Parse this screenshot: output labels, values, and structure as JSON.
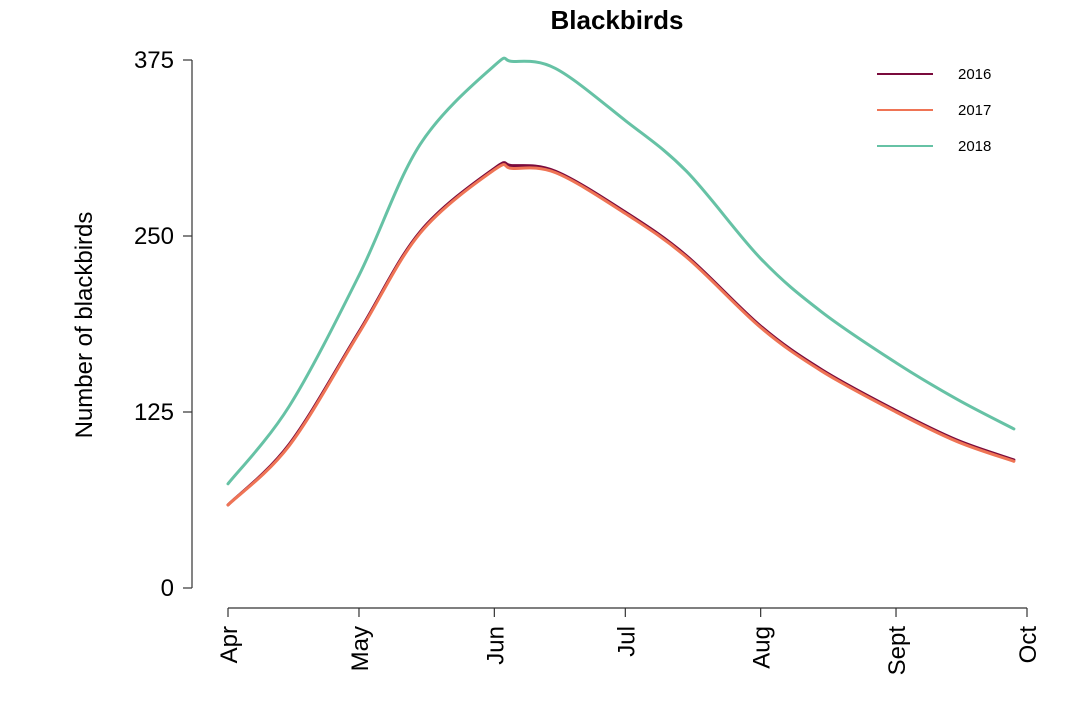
{
  "chart_data": {
    "type": "line",
    "title": "Blackbirds",
    "xlabel": "",
    "ylabel": "Number of blackbirds",
    "x_ticks": [
      "Apr",
      "May",
      "Jun",
      "Jul",
      "Aug",
      "Sept",
      "Oct"
    ],
    "x_tick_dates": [
      "2018-04-01",
      "2018-05-01",
      "2018-06-01",
      "2018-07-01",
      "2018-08-01",
      "2018-09-01",
      "2018-10-01"
    ],
    "y_ticks": [
      0,
      125,
      250,
      375
    ],
    "ylim": [
      0,
      375
    ],
    "xlim": [
      "2018-04-01",
      "2018-10-01"
    ],
    "grid": false,
    "legend_position": "top-right",
    "x": [
      "2018-04-01",
      "2018-04-15",
      "2018-05-01",
      "2018-05-15",
      "2018-06-01",
      "2018-06-05",
      "2018-06-15",
      "2018-07-01",
      "2018-07-15",
      "2018-08-01",
      "2018-08-15",
      "2018-09-01",
      "2018-09-15",
      "2018-09-28"
    ],
    "series": [
      {
        "name": "2016",
        "color": "#7a0a3c",
        "values": [
          59,
          102,
          182,
          253,
          298,
          300,
          296,
          267,
          236,
          186,
          155,
          126,
          105,
          91
        ]
      },
      {
        "name": "2017",
        "color": "#ef7455",
        "values": [
          59,
          101,
          181,
          252,
          297,
          298,
          295,
          266,
          235,
          185,
          154,
          125,
          104,
          90
        ]
      },
      {
        "name": "2018",
        "color": "#66c2a5",
        "values": [
          74,
          129,
          222,
          315,
          371,
          374,
          369,
          332,
          296,
          234,
          196,
          160,
          134,
          113
        ]
      }
    ]
  }
}
